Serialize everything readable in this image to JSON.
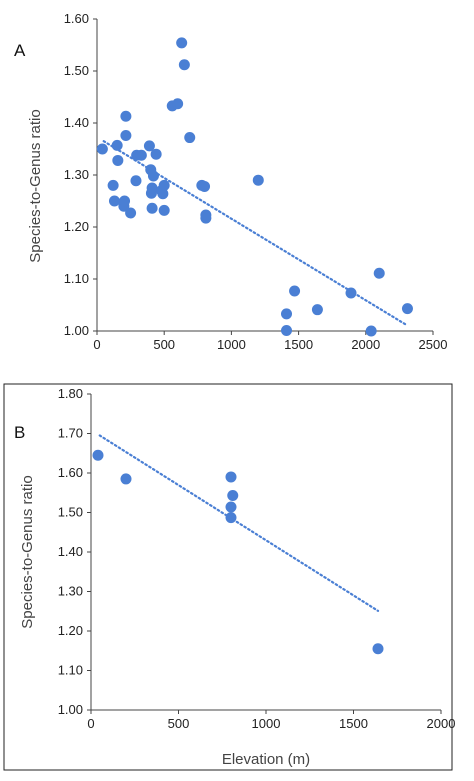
{
  "colors": {
    "points": "#4a7fd4",
    "trend": "#4a7fd4",
    "axis": "#444444",
    "frame": "#222222",
    "text": "#222222"
  },
  "chart_data": [
    {
      "type": "scatter",
      "panel_label": "A",
      "title": "",
      "xlabel": "",
      "ylabel": "Species-to-Genus ratio",
      "xlim": [
        0,
        2500
      ],
      "ylim": [
        1.0,
        1.6
      ],
      "x_ticks": [
        "0",
        "500",
        "1000",
        "1500",
        "2000",
        "2500"
      ],
      "y_ticks": [
        "1.00",
        "1.10",
        "1.20",
        "1.30",
        "1.40",
        "1.50",
        "1.60"
      ],
      "x_tick_values": [
        0,
        500,
        1000,
        1500,
        2000,
        2500
      ],
      "y_tick_values": [
        1.0,
        1.1,
        1.2,
        1.3,
        1.4,
        1.5,
        1.6
      ],
      "grid": false,
      "trendline": {
        "style": "dotted",
        "x": [
          50,
          2300
        ],
        "y": [
          1.365,
          1.012
        ]
      },
      "series": [
        {
          "points": [
            [
              40,
              1.35
            ],
            [
              120,
              1.28
            ],
            [
              130,
              1.25
            ],
            [
              150,
              1.357
            ],
            [
              155,
              1.328
            ],
            [
              200,
              1.24
            ],
            [
              205,
              1.25
            ],
            [
              215,
              1.413
            ],
            [
              215,
              1.376
            ],
            [
              250,
              1.227
            ],
            [
              290,
              1.289
            ],
            [
              295,
              1.338
            ],
            [
              330,
              1.338
            ],
            [
              390,
              1.356
            ],
            [
              400,
              1.31
            ],
            [
              405,
              1.265
            ],
            [
              410,
              1.275
            ],
            [
              410,
              1.236
            ],
            [
              420,
              1.298
            ],
            [
              440,
              1.34
            ],
            [
              480,
              1.27
            ],
            [
              490,
              1.264
            ],
            [
              500,
              1.28
            ],
            [
              500,
              1.232
            ],
            [
              560,
              1.433
            ],
            [
              600,
              1.437
            ],
            [
              630,
              1.554
            ],
            [
              650,
              1.512
            ],
            [
              690,
              1.372
            ],
            [
              780,
              1.28
            ],
            [
              800,
              1.278
            ],
            [
              810,
              1.217
            ],
            [
              810,
              1.223
            ],
            [
              1200,
              1.29
            ],
            [
              1410,
              1.033
            ],
            [
              1410,
              1.001
            ],
            [
              1470,
              1.077
            ],
            [
              1640,
              1.041
            ],
            [
              1890,
              1.073
            ],
            [
              2040,
              1.0
            ],
            [
              2100,
              1.111
            ],
            [
              2310,
              1.043
            ]
          ]
        }
      ]
    },
    {
      "type": "scatter",
      "panel_label": "B",
      "title": "",
      "xlabel": "Elevation (m)",
      "ylabel": "Species-to-Genus ratio",
      "xlim": [
        0,
        2000
      ],
      "ylim": [
        1.0,
        1.8
      ],
      "x_ticks": [
        "0",
        "500",
        "1000",
        "1500",
        "2000"
      ],
      "y_ticks": [
        "1.00",
        "1.10",
        "1.20",
        "1.30",
        "1.40",
        "1.50",
        "1.60",
        "1.70",
        "1.80"
      ],
      "x_tick_values": [
        0,
        500,
        1000,
        1500,
        2000
      ],
      "y_tick_values": [
        1.0,
        1.1,
        1.2,
        1.3,
        1.4,
        1.5,
        1.6,
        1.7,
        1.8
      ],
      "grid": false,
      "trendline": {
        "style": "dotted",
        "x": [
          50,
          1640
        ],
        "y": [
          1.695,
          1.251
        ]
      },
      "series": [
        {
          "points": [
            [
              40,
              1.645
            ],
            [
              200,
              1.585
            ],
            [
              800,
              1.59
            ],
            [
              810,
              1.543
            ],
            [
              800,
              1.514
            ],
            [
              800,
              1.487
            ],
            [
              1640,
              1.155
            ]
          ]
        }
      ]
    }
  ]
}
